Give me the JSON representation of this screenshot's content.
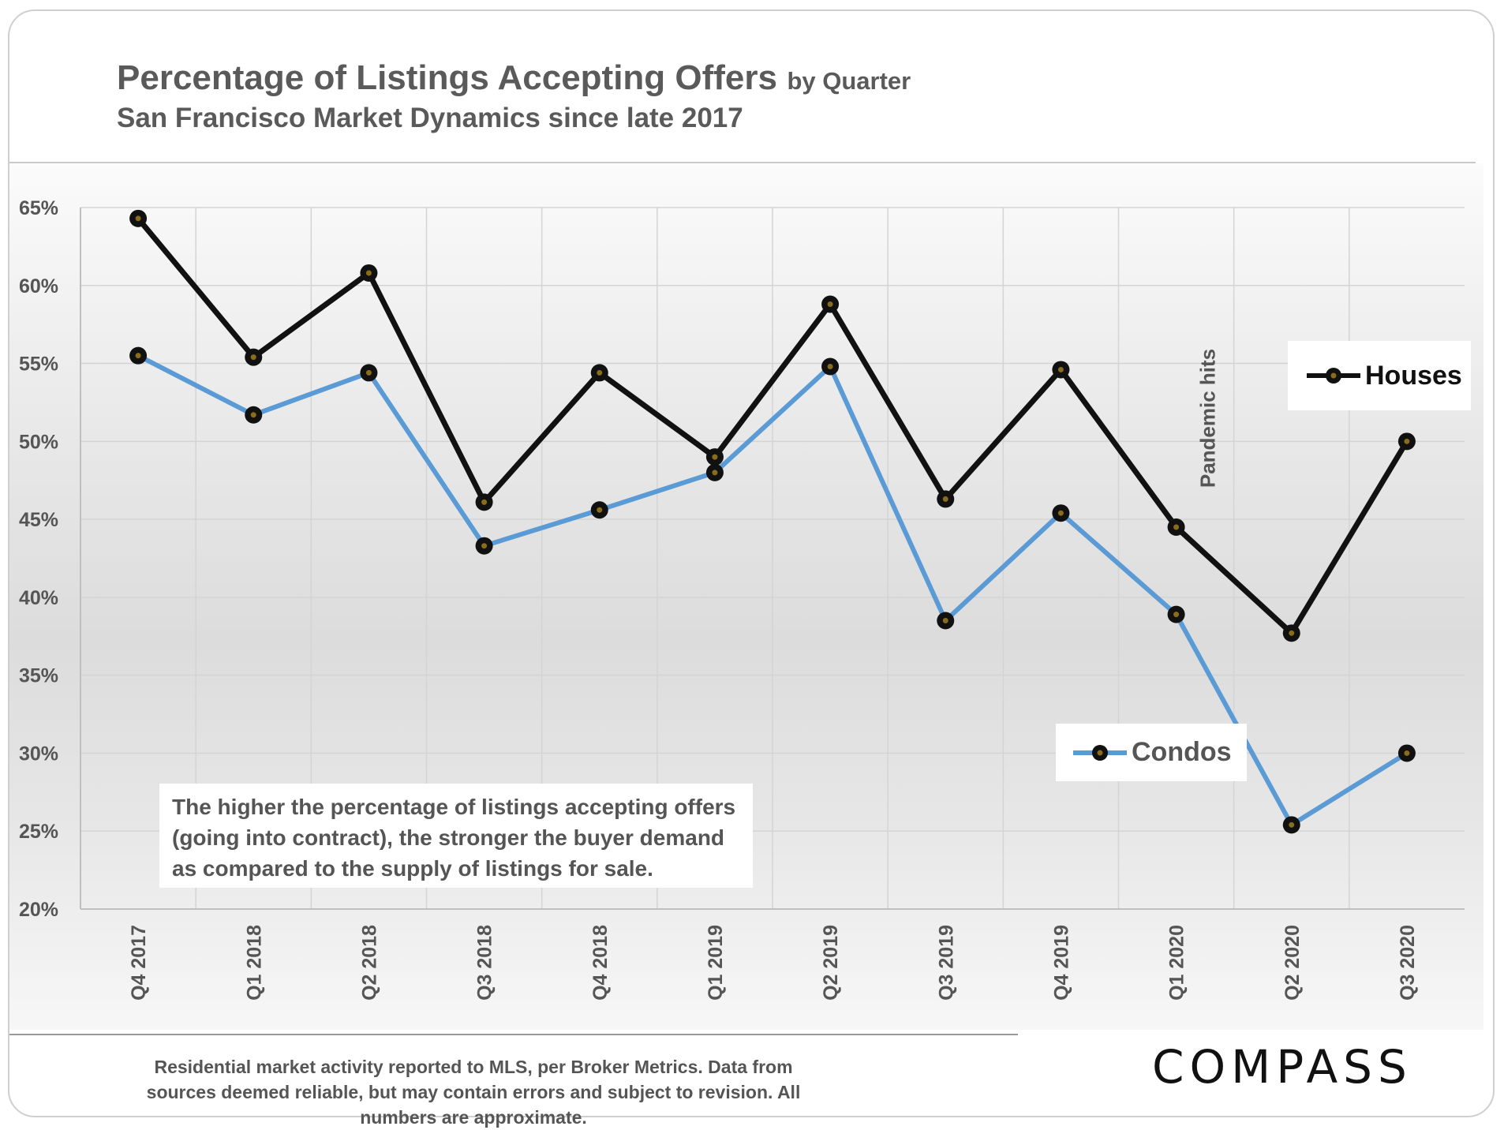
{
  "header": {
    "title": "Percentage of Listings Accepting Offers",
    "title_suffix": "by Quarter",
    "subtitle": "San Francisco Market Dynamics since late 2017"
  },
  "annotation": "The higher the percentage of listings accepting offers (going into contract), the stronger the buyer demand as compared to the supply of listings for sale.",
  "event_label": "Pandemic hits",
  "footer": {
    "note": "Residential market activity reported to MLS, per Broker Metrics. Data from sources deemed reliable, but may contain errors and subject to revision. All numbers are approximate.",
    "logo_text": "COMPASS"
  },
  "chart_data": {
    "type": "line",
    "categories": [
      "Q4 2017",
      "Q1 2018",
      "Q2 2018",
      "Q3 2018",
      "Q4 2018",
      "Q1 2019",
      "Q2 2019",
      "Q3 2019",
      "Q4 2019",
      "Q1 2020",
      "Q2 2020",
      "Q3 2020"
    ],
    "series": [
      {
        "name": "Houses",
        "color": "#111111",
        "marker_color": "#8a6d1a",
        "values": [
          64.3,
          55.4,
          60.8,
          46.1,
          54.4,
          49.0,
          58.8,
          46.3,
          54.6,
          44.5,
          37.7,
          50.0
        ]
      },
      {
        "name": "Condos",
        "color": "#5b9bd5",
        "marker_color": "#8a6d1a",
        "values": [
          55.5,
          51.7,
          54.4,
          43.3,
          45.6,
          48.0,
          54.8,
          38.5,
          45.4,
          38.9,
          25.4,
          30.0
        ]
      }
    ],
    "yticks": [
      "65%",
      "60%",
      "55%",
      "50%",
      "45%",
      "40%",
      "35%",
      "30%",
      "25%",
      "20%"
    ],
    "ylim": [
      20,
      65
    ],
    "grid": true,
    "legend": [
      "Houses",
      "Condos"
    ]
  }
}
